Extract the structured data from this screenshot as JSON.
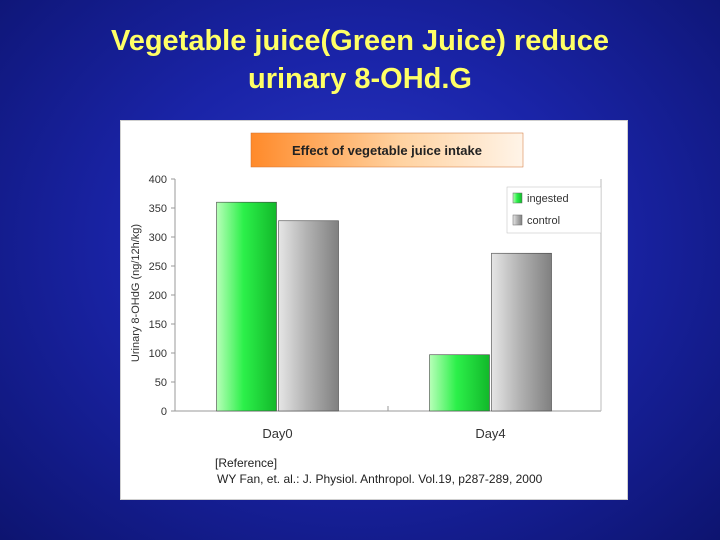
{
  "slide": {
    "title_line1": "Vegetable juice(Green Juice) reduce",
    "title_line2": "urinary 8-OHd.G",
    "background_color": "#1a24a8",
    "title_color": "#ffff66"
  },
  "chart_data": {
    "type": "bar",
    "title": "Effect of vegetable juice intake",
    "categories": [
      "Day0",
      "Day4"
    ],
    "series": [
      {
        "name": "ingested",
        "values": [
          360,
          97
        ],
        "color": "#33ff55"
      },
      {
        "name": "control",
        "values": [
          328,
          272
        ],
        "color": "#a8a8a8"
      }
    ],
    "ylabel": "Urinary 8-OHdG (ng/12h/kg)",
    "yticks": [
      0,
      50,
      100,
      150,
      200,
      250,
      300,
      350,
      400
    ],
    "ylim": [
      0,
      400
    ],
    "legend_position": "top-right",
    "grid": false
  },
  "reference": {
    "heading": "[Reference]",
    "citation": "WY Fan, et. al.: J. Physiol. Anthropol. Vol.19, p287-289, 2000"
  }
}
